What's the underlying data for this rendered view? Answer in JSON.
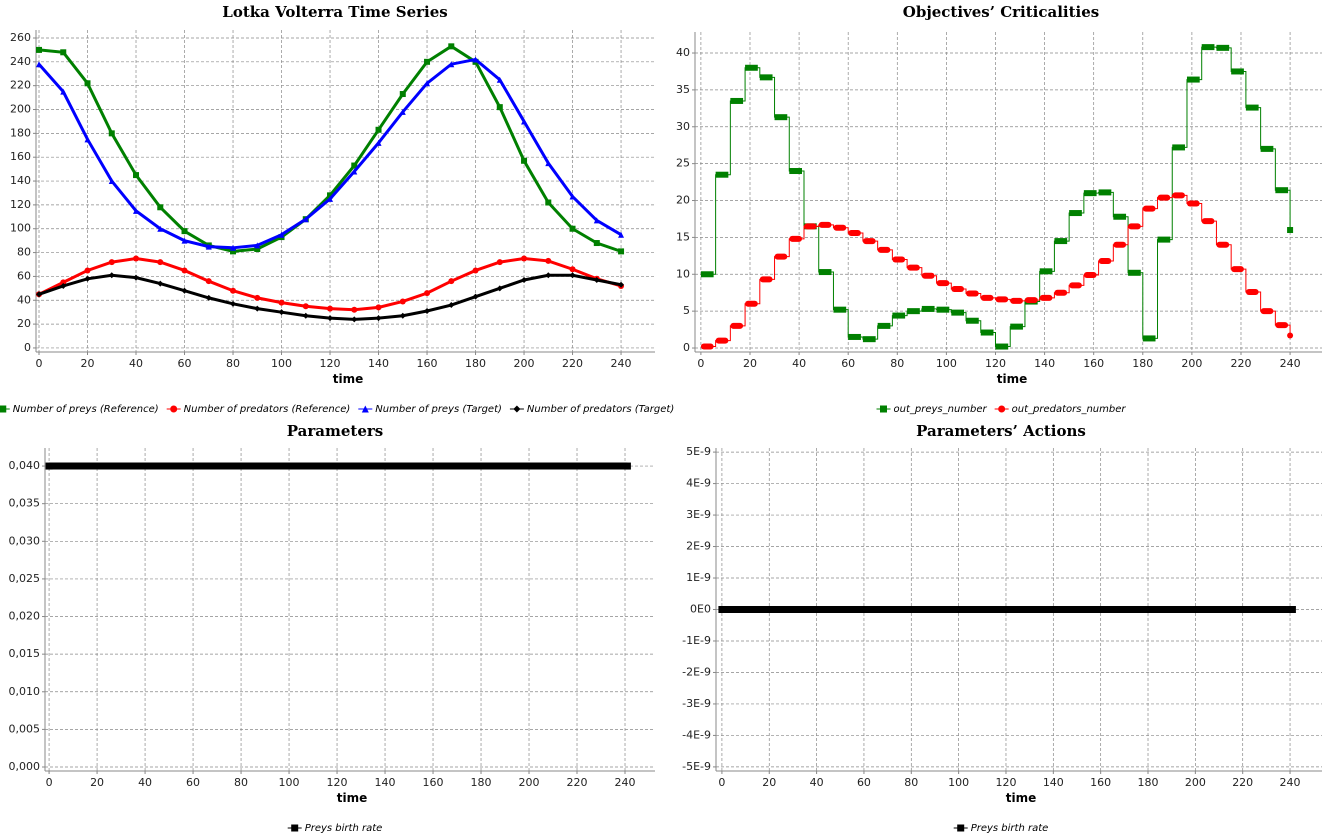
{
  "chart_data": [
    {
      "type": "line",
      "title": "Lotka Volterra Time Series",
      "x_label": "time",
      "x": [
        0,
        10,
        20,
        30,
        40,
        50,
        60,
        70,
        80,
        90,
        100,
        110,
        120,
        130,
        140,
        150,
        160,
        170,
        180,
        190,
        200,
        210,
        220,
        230,
        240
      ],
      "series": [
        {
          "name": "Number of preys (Reference)",
          "color": "#008000",
          "marker": "square",
          "values": [
            250,
            248,
            222,
            180,
            145,
            118,
            98,
            86,
            81,
            83,
            93,
            108,
            128,
            153,
            183,
            213,
            240,
            253,
            240,
            202,
            157,
            122,
            100,
            88,
            81
          ]
        },
        {
          "name": "Number of predators (Reference)",
          "color": "#ff0000",
          "marker": "circle",
          "values": [
            45,
            55,
            65,
            72,
            75,
            72,
            65,
            56,
            48,
            42,
            38,
            35,
            33,
            32,
            34,
            39,
            46,
            56,
            65,
            72,
            75,
            73,
            66,
            58,
            52
          ]
        },
        {
          "name": "Number of preys (Target)",
          "color": "#0000ff",
          "marker": "triangle",
          "values": [
            238,
            215,
            175,
            140,
            115,
            100,
            90,
            85,
            84,
            86,
            95,
            108,
            125,
            148,
            172,
            198,
            222,
            238,
            242,
            225,
            190,
            155,
            127,
            107,
            95
          ]
        },
        {
          "name": "Number of predators (Target)",
          "color": "#000000",
          "marker": "diamond",
          "values": [
            45,
            52,
            58,
            61,
            59,
            54,
            48,
            42,
            37,
            33,
            30,
            27,
            25,
            24,
            25,
            27,
            31,
            36,
            43,
            50,
            57,
            61,
            61,
            57,
            53
          ]
        }
      ],
      "xlim": [
        -1.24,
        254
      ],
      "ylim": [
        -3.4,
        266.7
      ],
      "xticks": [
        0,
        20,
        40,
        60,
        80,
        100,
        120,
        140,
        160,
        180,
        200,
        220,
        240
      ],
      "yticks": [
        0,
        20,
        40,
        60,
        80,
        100,
        120,
        140,
        160,
        180,
        200,
        220,
        240,
        260
      ],
      "grid": true
    },
    {
      "type": "line",
      "step": true,
      "title": "Objectives’ Criticalities",
      "x_label": "time",
      "x": [
        0,
        6,
        12,
        18,
        24,
        30,
        36,
        42,
        48,
        54,
        60,
        66,
        72,
        78,
        84,
        90,
        96,
        102,
        108,
        114,
        120,
        126,
        132,
        138,
        144,
        150,
        156,
        162,
        168,
        174,
        180,
        186,
        192,
        198,
        204,
        210,
        216,
        222,
        228,
        234,
        240
      ],
      "series": [
        {
          "name": "out_preys_number",
          "color": "#008000",
          "marker": "square",
          "values": [
            10,
            23.5,
            33.5,
            38,
            36.7,
            31.3,
            24,
            16.5,
            10.3,
            5.2,
            1.5,
            1.2,
            3,
            4.4,
            5,
            5.3,
            5.2,
            4.8,
            3.7,
            2.1,
            0.2,
            2.9,
            6.3,
            10.4,
            14.5,
            18.3,
            21,
            21.1,
            17.8,
            10.2,
            1.3,
            14.7,
            27.2,
            36.4,
            40.8,
            40.7,
            37.5,
            32.6,
            27,
            21.4,
            16
          ]
        },
        {
          "name": "out_predators_number",
          "color": "#ff0000",
          "marker": "circle",
          "values": [
            0.2,
            1,
            3,
            6,
            9.3,
            12.4,
            14.8,
            16.5,
            16.7,
            16.3,
            15.6,
            14.5,
            13.3,
            12,
            10.9,
            9.8,
            8.8,
            8,
            7.4,
            6.8,
            6.6,
            6.4,
            6.5,
            6.8,
            7.5,
            8.5,
            9.9,
            11.8,
            14,
            16.5,
            18.9,
            20.4,
            20.7,
            19.6,
            17.2,
            14,
            10.7,
            7.6,
            5,
            3.1,
            1.7
          ]
        }
      ],
      "xlim": [
        -2.4,
        253
      ],
      "ylim": [
        -0.54,
        42.85
      ],
      "xticks": [
        0,
        20,
        40,
        60,
        80,
        100,
        120,
        140,
        160,
        180,
        200,
        220,
        240
      ],
      "yticks": [
        0,
        5,
        10,
        15,
        20,
        25,
        30,
        35,
        40
      ],
      "grid": true
    },
    {
      "type": "line",
      "title": "Parameters",
      "x_label": "time",
      "x": [
        0,
        241
      ],
      "series": [
        {
          "name": "Preys birth rate",
          "color": "#000000",
          "marker": "square",
          "values": [
            0.04,
            0.04
          ]
        }
      ],
      "xlim": [
        -1.7,
        252.5
      ],
      "ylim": [
        -0.00053,
        0.0424
      ],
      "xticks": [
        0,
        20,
        40,
        60,
        80,
        100,
        120,
        140,
        160,
        180,
        200,
        220,
        240
      ],
      "yticks": [
        {
          "value": 0,
          "label": "0,000"
        },
        {
          "value": 0.005,
          "label": "0,005"
        },
        {
          "value": 0.01,
          "label": "0,010"
        },
        {
          "value": 0.015,
          "label": "0,015"
        },
        {
          "value": 0.02,
          "label": "0,020"
        },
        {
          "value": 0.025,
          "label": "0,025"
        },
        {
          "value": 0.03,
          "label": "0,030"
        },
        {
          "value": 0.035,
          "label": "0,035"
        },
        {
          "value": 0.04,
          "label": "0,040"
        }
      ],
      "grid": true
    },
    {
      "type": "line",
      "title": "Parameters’ Actions",
      "x_label": "time",
      "x": [
        0,
        241
      ],
      "series": [
        {
          "name": "Preys birth rate",
          "color": "#000000",
          "marker": "square",
          "values": [
            0,
            0
          ]
        }
      ],
      "xlim": [
        -2.5,
        253.5
      ],
      "ylim": [
        -5.13e-09,
        5.13e-09
      ],
      "xticks": [
        0,
        20,
        40,
        60,
        80,
        100,
        120,
        140,
        160,
        180,
        200,
        220,
        240
      ],
      "yticks": [
        {
          "value": -5e-09,
          "label": "-5E-9"
        },
        {
          "value": -4e-09,
          "label": "-4E-9"
        },
        {
          "value": -3e-09,
          "label": "-3E-9"
        },
        {
          "value": -2e-09,
          "label": "-2E-9"
        },
        {
          "value": -1e-09,
          "label": "-1E-9"
        },
        {
          "value": 0,
          "label": "0E0"
        },
        {
          "value": 1e-09,
          "label": "1E-9"
        },
        {
          "value": 2e-09,
          "label": "2E-9"
        },
        {
          "value": 3e-09,
          "label": "3E-9"
        },
        {
          "value": 4e-09,
          "label": "4E-9"
        },
        {
          "value": 5e-09,
          "label": "5E-9"
        }
      ],
      "grid": true
    }
  ]
}
